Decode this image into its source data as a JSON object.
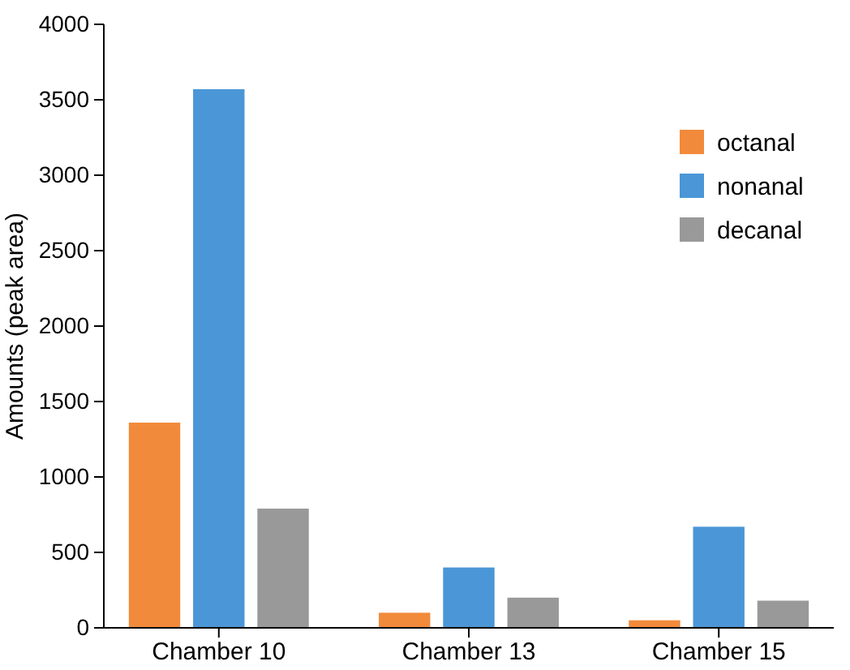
{
  "chart_data": {
    "type": "bar",
    "ylabel": "Amounts (peak area)",
    "categories": [
      "Chamber 10",
      "Chamber 13",
      "Chamber 15"
    ],
    "series": [
      {
        "name": "octanal",
        "color": "#f28a3b",
        "values": [
          1360,
          100,
          50
        ]
      },
      {
        "name": "nonanal",
        "color": "#4a96d6",
        "values": [
          3570,
          400,
          670
        ]
      },
      {
        "name": "decanal",
        "color": "#999999",
        "values": [
          790,
          200,
          180
        ]
      }
    ],
    "ylim": [
      0,
      4000
    ],
    "yticks": [
      0,
      500,
      1000,
      1500,
      2000,
      2500,
      3000,
      3500,
      4000
    ],
    "legend": "top right"
  }
}
